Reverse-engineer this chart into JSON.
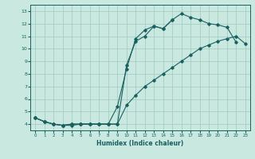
{
  "xlabel": "Humidex (Indice chaleur)",
  "xlim": [
    -0.5,
    23.5
  ],
  "ylim": [
    3.5,
    13.5
  ],
  "xticks": [
    0,
    1,
    2,
    3,
    4,
    5,
    6,
    7,
    8,
    9,
    10,
    11,
    12,
    13,
    14,
    15,
    16,
    17,
    18,
    19,
    20,
    21,
    22,
    23
  ],
  "yticks": [
    4,
    5,
    6,
    7,
    8,
    9,
    10,
    11,
    12,
    13
  ],
  "bg_color": "#c8e8e0",
  "line_color": "#1a6060",
  "grid_color": "#a0c8c0",
  "lines": [
    {
      "x": [
        0,
        1,
        2,
        3,
        4,
        5,
        6,
        7,
        8,
        9,
        10,
        11,
        12,
        13,
        14,
        15,
        16,
        17,
        18,
        19,
        20,
        21,
        22,
        23
      ],
      "y": [
        4.5,
        4.2,
        4.0,
        3.9,
        3.9,
        4.0,
        4.0,
        4.0,
        4.0,
        4.0,
        5.5,
        6.3,
        7.0,
        7.5,
        8.0,
        8.5,
        9.0,
        9.5,
        10.0,
        10.3,
        10.6,
        10.8,
        11.0,
        10.4
      ]
    },
    {
      "x": [
        0,
        1,
        2,
        3,
        4,
        5,
        6,
        7,
        8,
        9,
        10,
        11,
        12,
        13,
        14,
        15,
        16,
        17,
        18,
        19,
        20,
        21,
        22
      ],
      "y": [
        4.5,
        4.2,
        4.0,
        3.9,
        4.0,
        4.0,
        4.0,
        4.0,
        4.0,
        4.0,
        8.7,
        10.6,
        11.0,
        11.8,
        11.6,
        12.3,
        12.8,
        12.5,
        12.3,
        12.0,
        11.9,
        11.7,
        10.5
      ]
    },
    {
      "x": [
        0,
        1,
        2,
        3,
        4,
        5,
        6,
        7,
        8,
        9,
        10,
        11,
        12,
        13,
        14,
        15
      ],
      "y": [
        4.5,
        4.2,
        4.0,
        3.9,
        4.0,
        4.0,
        4.0,
        4.0,
        4.0,
        5.4,
        8.4,
        10.8,
        11.5,
        11.8,
        11.6,
        12.3
      ]
    }
  ]
}
